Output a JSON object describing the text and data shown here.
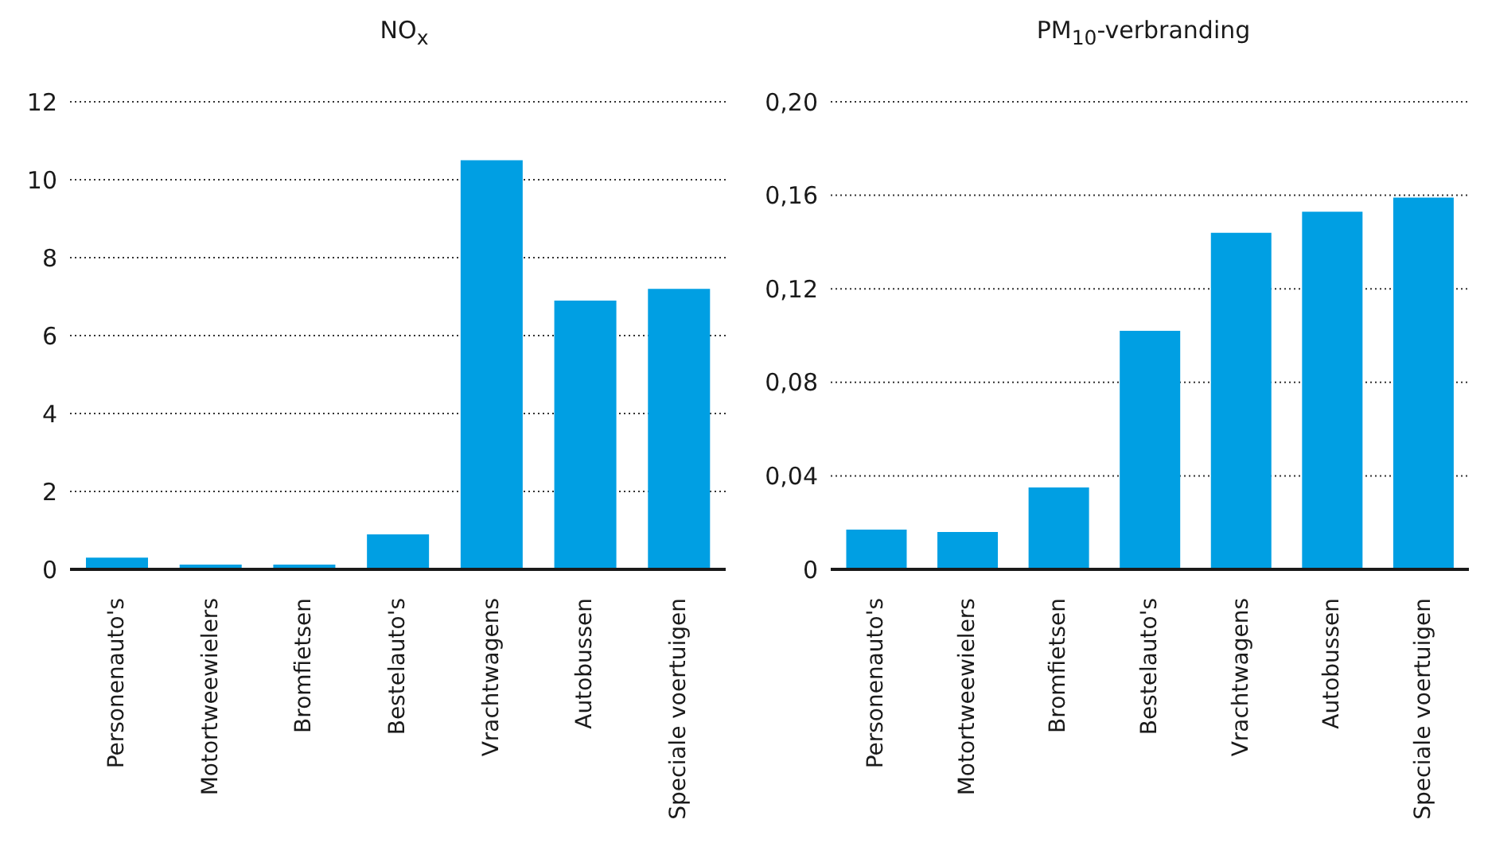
{
  "chart_data": [
    {
      "type": "bar",
      "title": "NO$_{x}$",
      "categories": [
        "Personenauto's",
        "Motortweewielers",
        "Bromfietsen",
        "Bestelauto's",
        "Vrachtwagens",
        "Autobussen",
        "Speciale voertuigen"
      ],
      "values": [
        0.3,
        0.12,
        0.12,
        0.9,
        10.5,
        6.9,
        7.2
      ],
      "color": "#009fe3",
      "ylim": [
        0,
        12
      ],
      "yticks": [
        0,
        2,
        4,
        6,
        8,
        10,
        12
      ],
      "grid": "y"
    },
    {
      "type": "bar",
      "title": "PM$_{10}$-verbranding",
      "categories": [
        "Personenauto's",
        "Motortweewielers",
        "Bromfietsen",
        "Bestelauto's",
        "Vrachtwagens",
        "Autobussen",
        "Speciale voertuigen"
      ],
      "values": [
        0.017,
        0.016,
        0.035,
        0.102,
        0.144,
        0.153,
        0.159
      ],
      "color": "#009fe3",
      "ylim": [
        0,
        0.2
      ],
      "yticks": [
        0,
        {
          "value": 0.04,
          "label": "0,04"
        },
        {
          "value": 0.08,
          "label": "0,08"
        },
        {
          "value": 0.12,
          "label": "0,12"
        },
        {
          "value": 0.16,
          "label": "0,16"
        },
        {
          "value": 0.2,
          "label": "0,20"
        }
      ],
      "grid": "y"
    }
  ]
}
